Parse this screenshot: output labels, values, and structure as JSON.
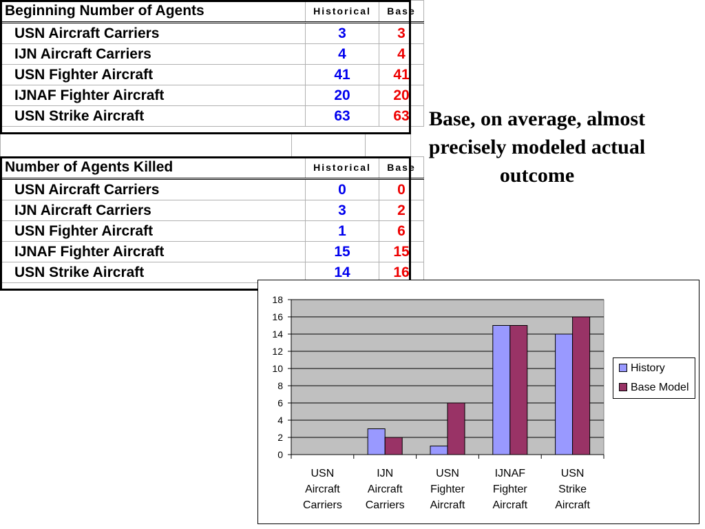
{
  "table_beginning": {
    "title": "Beginning Number of Agents",
    "col_historical": "Historical",
    "col_base": "Base",
    "rows": [
      {
        "label": "USN Aircraft Carriers",
        "historical": "3",
        "base": "3"
      },
      {
        "label": "IJN Aircraft Carriers",
        "historical": "4",
        "base": "4"
      },
      {
        "label": "USN Fighter Aircraft",
        "historical": "41",
        "base": "41"
      },
      {
        "label": "IJNAF Fighter Aircraft",
        "historical": "20",
        "base": "20"
      },
      {
        "label": "USN Strike Aircraft",
        "historical": "63",
        "base": "63"
      }
    ]
  },
  "table_killed": {
    "title": "Number of Agents Killed",
    "col_historical": "Historical",
    "col_base": "Base",
    "rows": [
      {
        "label": "USN Aircraft Carriers",
        "historical": "0",
        "base": "0"
      },
      {
        "label": "IJN Aircraft Carriers",
        "historical": "3",
        "base": "2"
      },
      {
        "label": "USN Fighter Aircraft",
        "historical": "1",
        "base": "6"
      },
      {
        "label": "IJNAF Fighter Aircraft",
        "historical": "15",
        "base": "15"
      },
      {
        "label": "USN Strike Aircraft",
        "historical": "14",
        "base": "16"
      }
    ]
  },
  "note": {
    "line1": "Base, on average, almost",
    "line2": "precisely modeled actual",
    "line3": "outcome"
  },
  "colors": {
    "historical_text": "#0000ee",
    "base_text": "#ee0000",
    "plot_bg": "#c0c0c0",
    "history_bar": "#9999ff",
    "base_bar": "#993366"
  },
  "chart_data": {
    "type": "bar",
    "categories": [
      [
        "USN",
        "Aircraft",
        "Carriers"
      ],
      [
        "IJN",
        "Aircraft",
        "Carriers"
      ],
      [
        "USN",
        "Fighter",
        "Aircraft"
      ],
      [
        "IJNAF",
        "Fighter",
        "Aircraft"
      ],
      [
        "USN",
        "Strike",
        "Aircraft"
      ]
    ],
    "series": [
      {
        "name": "History",
        "values": [
          0,
          3,
          1,
          15,
          14
        ],
        "color": "#9999ff"
      },
      {
        "name": "Base Model",
        "values": [
          0,
          2,
          6,
          15,
          16
        ],
        "color": "#993366"
      }
    ],
    "ylim": [
      0,
      18
    ],
    "yticks": [
      0,
      2,
      4,
      6,
      8,
      10,
      12,
      14,
      16,
      18
    ],
    "grid": true,
    "legend_position": "right"
  }
}
